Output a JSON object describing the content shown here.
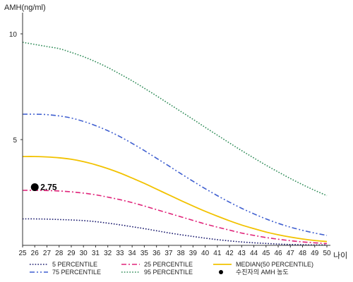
{
  "chart_data": {
    "type": "line",
    "title": "",
    "ylabel": "AMH(ng/ml)",
    "xlabel": "나이",
    "xlim": [
      25,
      50
    ],
    "ylim": [
      0,
      11
    ],
    "yticks": [
      5,
      10
    ],
    "x": [
      25,
      26,
      27,
      28,
      29,
      30,
      31,
      32,
      33,
      34,
      35,
      36,
      37,
      38,
      39,
      40,
      41,
      42,
      43,
      44,
      45,
      46,
      47,
      48,
      49,
      50
    ],
    "grid": false,
    "legend_position": "bottom",
    "series": [
      {
        "name": "5 PERCENTILE",
        "color": "#1a1a6e",
        "dash": "dotted",
        "values": [
          1.25,
          1.25,
          1.24,
          1.22,
          1.2,
          1.17,
          1.12,
          1.05,
          0.97,
          0.88,
          0.79,
          0.69,
          0.59,
          0.5,
          0.42,
          0.34,
          0.27,
          0.21,
          0.16,
          0.12,
          0.09,
          0.06,
          0.04,
          0.03,
          0.02,
          0.02
        ]
      },
      {
        "name": "25 PERCENTILE",
        "color": "#e0247a",
        "dash": "dashdot",
        "values": [
          2.6,
          2.6,
          2.59,
          2.57,
          2.53,
          2.47,
          2.39,
          2.28,
          2.16,
          2.02,
          1.86,
          1.69,
          1.52,
          1.35,
          1.18,
          1.01,
          0.86,
          0.72,
          0.58,
          0.47,
          0.37,
          0.29,
          0.22,
          0.16,
          0.12,
          0.08
        ]
      },
      {
        "name": "MEDIAN(50 PERCENTILE)",
        "color": "#f2c200",
        "dash": "solid",
        "values": [
          4.2,
          4.2,
          4.18,
          4.14,
          4.07,
          3.96,
          3.81,
          3.63,
          3.42,
          3.18,
          2.93,
          2.66,
          2.39,
          2.12,
          1.86,
          1.61,
          1.38,
          1.16,
          0.96,
          0.79,
          0.63,
          0.5,
          0.39,
          0.3,
          0.23,
          0.18
        ]
      },
      {
        "name": "75 PERCENTILE",
        "color": "#3f5fd0",
        "dash": "dashdotdot",
        "values": [
          6.2,
          6.2,
          6.18,
          6.12,
          6.02,
          5.86,
          5.66,
          5.42,
          5.14,
          4.82,
          4.48,
          4.12,
          3.76,
          3.39,
          3.03,
          2.68,
          2.35,
          2.04,
          1.75,
          1.49,
          1.25,
          1.04,
          0.86,
          0.71,
          0.58,
          0.47
        ]
      },
      {
        "name": "95 PERCENTILE",
        "color": "#2e8b57",
        "dash": "dotted",
        "values": [
          9.6,
          9.5,
          9.4,
          9.3,
          9.12,
          8.92,
          8.68,
          8.41,
          8.1,
          7.78,
          7.43,
          7.07,
          6.7,
          6.33,
          5.96,
          5.58,
          5.21,
          4.84,
          4.48,
          4.13,
          3.79,
          3.47,
          3.16,
          2.87,
          2.6,
          2.35
        ]
      }
    ],
    "marker": {
      "name": "수진자의 AMH 농도",
      "x": 26,
      "y": 2.75,
      "label": "2.75",
      "color": "#000000"
    }
  }
}
